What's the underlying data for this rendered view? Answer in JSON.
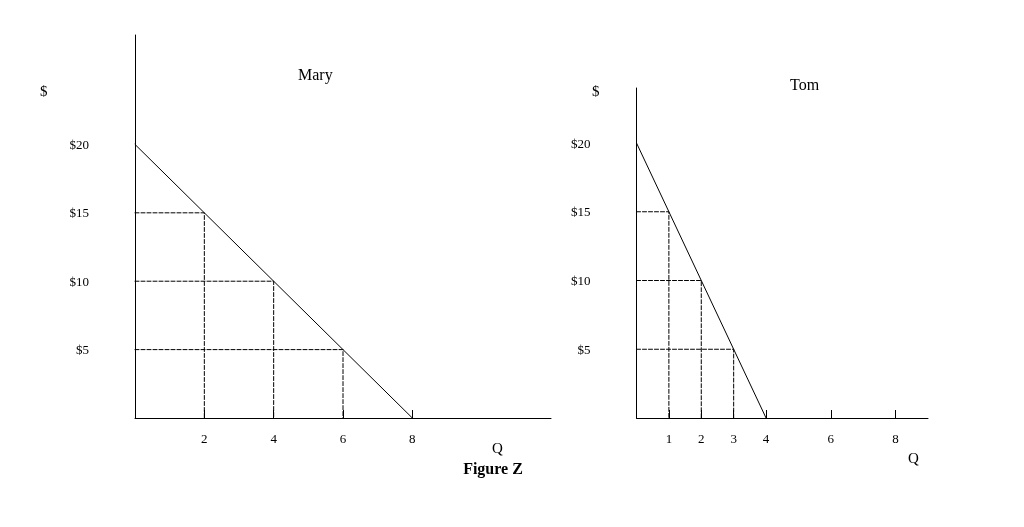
{
  "chart_data": [
    {
      "type": "line",
      "title": "Mary",
      "ylabel": "$",
      "xlabel": "Q",
      "annotations": [
        "Figure Z"
      ],
      "xlim": [
        0,
        12
      ],
      "xticks": [
        2,
        4,
        6,
        8
      ],
      "ylim": [
        0,
        28
      ],
      "yticks": [
        {
          "value": 5,
          "label": "$5"
        },
        {
          "value": 10,
          "label": "$10"
        },
        {
          "value": 15,
          "label": "$15"
        },
        {
          "value": 20,
          "label": "$20"
        }
      ],
      "grid": false,
      "marker": "none",
      "series": [
        {
          "color": "#000000",
          "x": [
            0,
            8
          ],
          "values": [
            20,
            0
          ],
          "line_style": "solid"
        },
        {
          "color": "#000000",
          "x": [
            0,
            2,
            2
          ],
          "values": [
            15,
            15,
            0
          ],
          "line_style": "dashed"
        },
        {
          "color": "#000000",
          "x": [
            0,
            4,
            4
          ],
          "values": [
            10,
            10,
            0
          ],
          "line_style": "dashed"
        },
        {
          "color": "#000000",
          "x": [
            0,
            6,
            6
          ],
          "values": [
            5,
            5,
            0
          ],
          "line_style": "dashed"
        }
      ]
    },
    {
      "type": "line",
      "title": "Tom",
      "ylabel": "$",
      "xlabel": "Q",
      "xlim": [
        0,
        9
      ],
      "xticks": [
        1,
        2,
        3,
        4,
        6,
        8
      ],
      "ylim": [
        0,
        24
      ],
      "yticks": [
        {
          "value": 5,
          "label": "$5"
        },
        {
          "value": 10,
          "label": "$10"
        },
        {
          "value": 15,
          "label": "$15"
        },
        {
          "value": 20,
          "label": "$20"
        }
      ],
      "grid": false,
      "marker": "none",
      "series": [
        {
          "color": "#000000",
          "x": [
            0,
            4
          ],
          "values": [
            20,
            0
          ],
          "line_style": "solid"
        },
        {
          "color": "#000000",
          "x": [
            0,
            1,
            1
          ],
          "values": [
            15,
            15,
            0
          ],
          "line_style": "dashed"
        },
        {
          "color": "#000000",
          "x": [
            0,
            2,
            2
          ],
          "values": [
            10,
            10,
            0
          ],
          "line_style": "dashed"
        },
        {
          "color": "#000000",
          "x": [
            0,
            3,
            3
          ],
          "values": [
            5,
            5,
            0
          ],
          "line_style": "dashed"
        }
      ]
    }
  ]
}
